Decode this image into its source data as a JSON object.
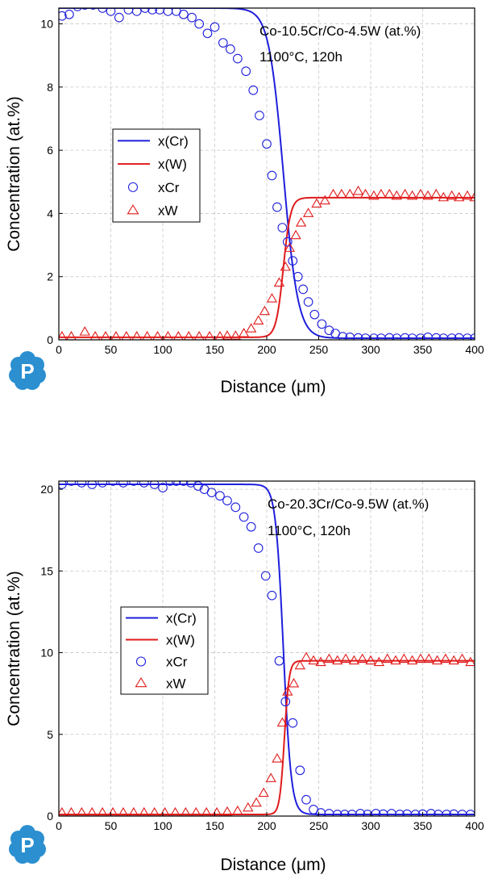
{
  "chart_data": [
    {
      "type": "line",
      "annotation": [
        "Co-10.5Cr/Co-4.5W (at.%)",
        "1100°C, 120h"
      ],
      "xlabel": "Distance (μm)",
      "ylabel": "Concentration (at.%)",
      "xlim": [
        0,
        400
      ],
      "ylim": [
        0,
        10.5
      ],
      "xticks": [
        0,
        50,
        100,
        150,
        200,
        250,
        300,
        350,
        400
      ],
      "yticks": [
        0,
        2,
        4,
        6,
        8,
        10
      ],
      "grid": true,
      "legend_position": "center-left",
      "colors": {
        "Cr": "#1f1fdc",
        "W": "#e01b1b"
      },
      "series": [
        {
          "name": "x(Cr)",
          "kind": "line",
          "color": "#1f1fdc",
          "profile": {
            "high": 10.5,
            "low": 0.05,
            "mid": 216,
            "width": 28
          }
        },
        {
          "name": "x(W)",
          "kind": "line",
          "color": "#e01b1b",
          "profile": {
            "low": 0.08,
            "high": 4.5,
            "mid": 216,
            "width": 14
          }
        },
        {
          "name": "xCr",
          "kind": "circle",
          "color": "#1f1fdc",
          "x": [
            3,
            10,
            18,
            25,
            33,
            42,
            50,
            58,
            67,
            75,
            83,
            90,
            97,
            105,
            113,
            120,
            128,
            135,
            143,
            150,
            158,
            165,
            172,
            180,
            187,
            193,
            200,
            205,
            210,
            215,
            220,
            225,
            230,
            235,
            240,
            246,
            253,
            260,
            266,
            273,
            280,
            288,
            295,
            303,
            310,
            318,
            325,
            333,
            340,
            348,
            355,
            363,
            370,
            378,
            385,
            393,
            400
          ],
          "y": [
            10.25,
            10.3,
            10.55,
            10.6,
            10.6,
            10.5,
            10.4,
            10.2,
            10.45,
            10.4,
            10.5,
            10.45,
            10.45,
            10.4,
            10.4,
            10.3,
            10.2,
            10.0,
            9.7,
            9.9,
            9.4,
            9.2,
            8.9,
            8.5,
            7.9,
            7.1,
            6.2,
            5.2,
            4.2,
            3.55,
            3.1,
            2.5,
            2.0,
            1.6,
            1.2,
            0.8,
            0.5,
            0.3,
            0.2,
            0.1,
            0.08,
            0.06,
            0.05,
            0.05,
            0.05,
            0.06,
            0.05,
            0.06,
            0.05,
            0.05,
            0.08,
            0.06,
            0.05,
            0.05,
            0.06,
            0.05,
            0.05
          ]
        },
        {
          "name": "xW",
          "kind": "triangle",
          "color": "#e01b1b",
          "x": [
            3,
            12,
            25,
            35,
            45,
            55,
            65,
            75,
            85,
            95,
            105,
            115,
            125,
            135,
            145,
            155,
            162,
            170,
            178,
            185,
            192,
            198,
            205,
            212,
            218,
            222,
            228,
            233,
            240,
            248,
            256,
            264,
            272,
            280,
            288,
            295,
            303,
            310,
            318,
            325,
            333,
            340,
            348,
            355,
            363,
            370,
            378,
            385,
            393,
            400
          ],
          "y": [
            0.1,
            0.1,
            0.25,
            0.1,
            0.1,
            0.1,
            0.1,
            0.1,
            0.1,
            0.1,
            0.1,
            0.1,
            0.1,
            0.1,
            0.1,
            0.1,
            0.12,
            0.12,
            0.2,
            0.35,
            0.6,
            0.9,
            1.3,
            1.8,
            2.3,
            2.9,
            3.3,
            3.7,
            4.0,
            4.3,
            4.4,
            4.6,
            4.6,
            4.6,
            4.7,
            4.6,
            4.55,
            4.6,
            4.6,
            4.55,
            4.6,
            4.55,
            4.6,
            4.55,
            4.6,
            4.5,
            4.55,
            4.5,
            4.55,
            4.5
          ]
        }
      ]
    },
    {
      "type": "line",
      "annotation": [
        "Co-20.3Cr/Co-9.5W (at.%)",
        "1100°C, 120h"
      ],
      "xlabel": "Distance (μm)",
      "ylabel": "Concentration (at.%)",
      "xlim": [
        0,
        400
      ],
      "ylim": [
        0,
        20.5
      ],
      "xticks": [
        0,
        50,
        100,
        150,
        200,
        250,
        300,
        350,
        400
      ],
      "yticks": [
        0,
        5,
        10,
        15,
        20
      ],
      "grid": true,
      "legend_position": "center-left",
      "colors": {
        "Cr": "#1f1fdc",
        "W": "#e01b1b"
      },
      "series": [
        {
          "name": "x(Cr)",
          "kind": "line",
          "color": "#1f1fdc",
          "profile": {
            "high": 20.3,
            "low": 0.1,
            "mid": 216,
            "width": 15
          }
        },
        {
          "name": "x(W)",
          "kind": "line",
          "color": "#e01b1b",
          "profile": {
            "low": 0.1,
            "high": 9.5,
            "mid": 217,
            "width": 9
          }
        },
        {
          "name": "xCr",
          "kind": "circle",
          "color": "#1f1fdc",
          "x": [
            3,
            12,
            22,
            32,
            42,
            52,
            62,
            72,
            82,
            92,
            100,
            107,
            113,
            120,
            127,
            134,
            140,
            147,
            155,
            162,
            170,
            178,
            185,
            192,
            199,
            205,
            212,
            218,
            225,
            232,
            238,
            245,
            252,
            260,
            268,
            275,
            282,
            290,
            297,
            305,
            312,
            320,
            328,
            335,
            343,
            350,
            358,
            365,
            373,
            380,
            388,
            396
          ],
          "y": [
            20.3,
            20.5,
            20.4,
            20.3,
            20.4,
            20.5,
            20.4,
            20.5,
            20.4,
            20.3,
            20.1,
            20.5,
            20.5,
            20.5,
            20.4,
            20.2,
            20.0,
            19.8,
            19.6,
            19.3,
            18.9,
            18.3,
            17.7,
            16.4,
            14.7,
            13.5,
            9.5,
            7.0,
            5.7,
            2.8,
            1.0,
            0.4,
            0.2,
            0.15,
            0.1,
            0.1,
            0.1,
            0.15,
            0.1,
            0.15,
            0.12,
            0.15,
            0.1,
            0.12,
            0.1,
            0.12,
            0.15,
            0.1,
            0.1,
            0.12,
            0.1,
            0.1
          ]
        },
        {
          "name": "xW",
          "kind": "triangle",
          "color": "#e01b1b",
          "x": [
            3,
            12,
            22,
            32,
            42,
            52,
            62,
            72,
            82,
            92,
            102,
            112,
            122,
            132,
            142,
            152,
            162,
            172,
            182,
            190,
            197,
            204,
            210,
            215,
            220,
            226,
            232,
            238,
            245,
            252,
            260,
            268,
            276,
            284,
            292,
            300,
            308,
            316,
            324,
            332,
            340,
            348,
            356,
            364,
            372,
            380,
            388,
            396
          ],
          "y": [
            0.2,
            0.2,
            0.2,
            0.2,
            0.2,
            0.2,
            0.2,
            0.2,
            0.2,
            0.2,
            0.2,
            0.2,
            0.2,
            0.2,
            0.2,
            0.2,
            0.25,
            0.3,
            0.5,
            0.8,
            1.4,
            2.3,
            3.5,
            5.7,
            7.6,
            8.1,
            9.2,
            9.7,
            9.5,
            9.4,
            9.6,
            9.5,
            9.6,
            9.5,
            9.6,
            9.5,
            9.4,
            9.6,
            9.5,
            9.6,
            9.5,
            9.6,
            9.6,
            9.5,
            9.6,
            9.5,
            9.6,
            9.4
          ]
        }
      ]
    }
  ]
}
